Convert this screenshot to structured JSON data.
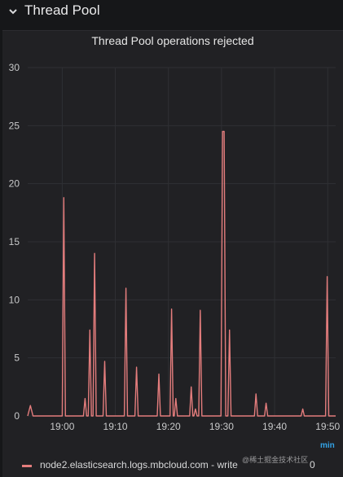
{
  "row": {
    "title": "Thread Pool"
  },
  "panel": {
    "title": "Thread Pool operations rejected",
    "units": "min",
    "legend": {
      "label": "node2.elasticsearch.logs.mbcloud.com - write",
      "value": "0"
    }
  },
  "watermark": "@稀土掘金技术社区",
  "colors": {
    "series": "#e47d7d",
    "grid": "#2f3034",
    "background": "#212124"
  },
  "chart_data": {
    "type": "line",
    "ylim": [
      0,
      30
    ],
    "yticks": [
      0,
      5,
      10,
      15,
      20,
      25,
      30
    ],
    "x_range_min": [
      53.5,
      111.5
    ],
    "xticks": [
      {
        "label": "19:00",
        "value": 60
      },
      {
        "label": "19:10",
        "value": 70
      },
      {
        "label": "19:20",
        "value": 80
      },
      {
        "label": "19:30",
        "value": 90
      },
      {
        "label": "19:40",
        "value": 100
      },
      {
        "label": "19:50",
        "value": 110
      }
    ],
    "grid": true,
    "series": [
      {
        "name": "node2.elasticsearch.logs.mbcloud.com - write",
        "points": [
          [
            53.5,
            0
          ],
          [
            54.0,
            0.9
          ],
          [
            54.5,
            0
          ],
          [
            60.0,
            0
          ],
          [
            60.3,
            18.8
          ],
          [
            60.6,
            0
          ],
          [
            64.0,
            0
          ],
          [
            64.3,
            1.5
          ],
          [
            64.6,
            0
          ],
          [
            64.9,
            0
          ],
          [
            65.2,
            7.4
          ],
          [
            65.5,
            0
          ],
          [
            65.8,
            0
          ],
          [
            66.1,
            14.0
          ],
          [
            66.4,
            0
          ],
          [
            67.7,
            0
          ],
          [
            68.0,
            4.7
          ],
          [
            68.3,
            0
          ],
          [
            71.7,
            0
          ],
          [
            72.0,
            11.0
          ],
          [
            72.3,
            0
          ],
          [
            73.7,
            0
          ],
          [
            74.0,
            4.2
          ],
          [
            74.3,
            0
          ],
          [
            77.9,
            0
          ],
          [
            78.2,
            3.6
          ],
          [
            78.5,
            0
          ],
          [
            80.3,
            0
          ],
          [
            80.6,
            9.2
          ],
          [
            80.9,
            0
          ],
          [
            81.1,
            0
          ],
          [
            81.4,
            1.5
          ],
          [
            81.7,
            0
          ],
          [
            84.0,
            0
          ],
          [
            84.3,
            2.5
          ],
          [
            84.6,
            0
          ],
          [
            84.8,
            0
          ],
          [
            85.1,
            0.6
          ],
          [
            85.4,
            0
          ],
          [
            85.7,
            0
          ],
          [
            86.0,
            9.1
          ],
          [
            86.3,
            0
          ],
          [
            89.9,
            0
          ],
          [
            90.2,
            24.5
          ],
          [
            90.5,
            24.5
          ],
          [
            90.8,
            0
          ],
          [
            91.2,
            0
          ],
          [
            91.5,
            7.4
          ],
          [
            91.8,
            0
          ],
          [
            96.2,
            0
          ],
          [
            96.5,
            1.9
          ],
          [
            96.8,
            0
          ],
          [
            98.1,
            0
          ],
          [
            98.4,
            1.1
          ],
          [
            98.7,
            0
          ],
          [
            105.0,
            0
          ],
          [
            105.3,
            0.6
          ],
          [
            105.6,
            0
          ],
          [
            109.6,
            0
          ],
          [
            109.9,
            12.0
          ],
          [
            110.2,
            0
          ],
          [
            111.5,
            0
          ]
        ]
      }
    ]
  }
}
